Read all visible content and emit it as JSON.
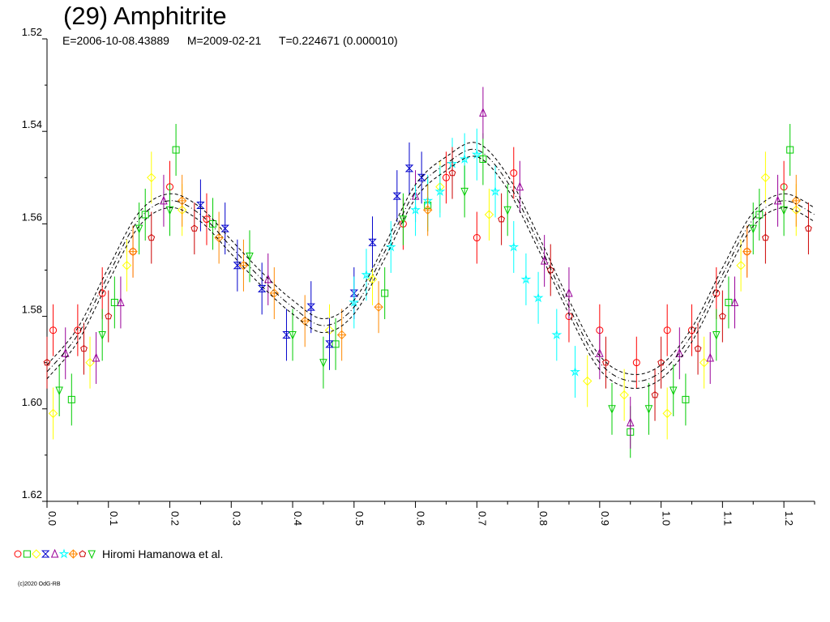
{
  "chart_data": {
    "type": "scatter",
    "title": "(29) Amphitrite",
    "subtitle": {
      "epoch": "E=2006-10-08.43889",
      "mid_date": "M=2009-02-21",
      "period": "T=0.224671 (0.000010)"
    },
    "xlabel": "",
    "ylabel": "",
    "xlim": [
      0.0,
      1.25
    ],
    "ylim": [
      1.52,
      1.62
    ],
    "y_inverted": true,
    "grid": false,
    "x_ticks": [
      "0.0",
      "0.1",
      "0.2",
      "0.3",
      "0.4",
      "0.5",
      "0.6",
      "0.7",
      "0.8",
      "0.9",
      "1.0",
      "1.1",
      "1.2"
    ],
    "y_ticks": [
      "1.52",
      "1.54",
      "1.56",
      "1.58",
      "1.60",
      "1.62"
    ],
    "fit_curve": {
      "x": [
        0.0,
        0.05,
        0.1,
        0.15,
        0.2,
        0.25,
        0.3,
        0.35,
        0.4,
        0.45,
        0.5,
        0.55,
        0.6,
        0.65,
        0.7,
        0.75,
        0.8,
        0.85,
        0.9,
        0.95,
        1.0,
        1.05,
        1.1,
        1.15,
        1.2,
        1.25
      ],
      "y": [
        1.592,
        1.584,
        1.571,
        1.559,
        1.555,
        1.558,
        1.565,
        1.572,
        1.578,
        1.582,
        1.578,
        1.566,
        1.553,
        1.547,
        1.544,
        1.551,
        1.564,
        1.578,
        1.59,
        1.594,
        1.592,
        1.584,
        1.571,
        1.559,
        1.555,
        1.558
      ],
      "band": 0.0015
    },
    "legend": {
      "text": "Hiromi Hamanowa et al.",
      "placement": "bottom-left",
      "markers": [
        {
          "shape": "circle",
          "color": "#ff0000"
        },
        {
          "shape": "square",
          "color": "#00cc00"
        },
        {
          "shape": "diamond",
          "color": "#ffff00"
        },
        {
          "shape": "hourglass",
          "color": "#0000cc"
        },
        {
          "shape": "triangle-up",
          "color": "#990099"
        },
        {
          "shape": "star",
          "color": "#00ffff"
        },
        {
          "shape": "plus-diamond",
          "color": "#ff8800"
        },
        {
          "shape": "pentagon",
          "color": "#cc0000"
        },
        {
          "shape": "triangle-down",
          "color": "#00cc00"
        }
      ]
    },
    "series": [
      {
        "marker": "circle",
        "color": "#ff0000",
        "points": [
          [
            0.01,
            1.583
          ],
          [
            0.05,
            1.583
          ],
          [
            0.09,
            1.575
          ],
          [
            0.14,
            1.566
          ],
          [
            0.2,
            1.552
          ],
          [
            0.26,
            1.559
          ],
          [
            0.58,
            1.56
          ],
          [
            0.65,
            1.55
          ],
          [
            0.7,
            1.563
          ],
          [
            0.76,
            1.549
          ],
          [
            0.85,
            1.58
          ],
          [
            0.9,
            1.583
          ],
          [
            0.96,
            1.59
          ],
          [
            1.01,
            1.583
          ],
          [
            1.05,
            1.583
          ],
          [
            1.09,
            1.575
          ],
          [
            1.14,
            1.566
          ],
          [
            1.2,
            1.552
          ]
        ]
      },
      {
        "marker": "square",
        "color": "#00cc00",
        "points": [
          [
            0.04,
            1.598
          ],
          [
            0.11,
            1.577
          ],
          [
            0.16,
            1.558
          ],
          [
            0.21,
            1.544
          ],
          [
            0.27,
            1.56
          ],
          [
            0.47,
            1.586
          ],
          [
            0.55,
            1.575
          ],
          [
            0.62,
            1.556
          ],
          [
            0.71,
            1.546
          ],
          [
            0.95,
            1.605
          ],
          [
            1.04,
            1.598
          ],
          [
            1.11,
            1.577
          ],
          [
            1.16,
            1.558
          ],
          [
            1.21,
            1.544
          ]
        ]
      },
      {
        "marker": "diamond",
        "color": "#ffff00",
        "points": [
          [
            0.01,
            1.601
          ],
          [
            0.07,
            1.59
          ],
          [
            0.13,
            1.569
          ],
          [
            0.17,
            1.55
          ],
          [
            0.22,
            1.557
          ],
          [
            0.46,
            1.583
          ],
          [
            0.53,
            1.572
          ],
          [
            0.64,
            1.552
          ],
          [
            0.72,
            1.558
          ],
          [
            0.88,
            1.594
          ],
          [
            0.94,
            1.597
          ],
          [
            1.01,
            1.601
          ],
          [
            1.07,
            1.59
          ],
          [
            1.13,
            1.569
          ],
          [
            1.17,
            1.55
          ],
          [
            1.22,
            1.557
          ]
        ]
      },
      {
        "marker": "hourglass",
        "color": "#0000cc",
        "points": [
          [
            0.25,
            1.556
          ],
          [
            0.29,
            1.561
          ],
          [
            0.31,
            1.569
          ],
          [
            0.35,
            1.574
          ],
          [
            0.39,
            1.584
          ],
          [
            0.43,
            1.578
          ],
          [
            0.46,
            1.586
          ],
          [
            0.5,
            1.575
          ],
          [
            0.53,
            1.564
          ],
          [
            0.57,
            1.554
          ],
          [
            0.59,
            1.548
          ],
          [
            0.61,
            1.55
          ]
        ]
      },
      {
        "marker": "triangle-up",
        "color": "#990099",
        "points": [
          [
            0.03,
            1.588
          ],
          [
            0.08,
            1.589
          ],
          [
            0.12,
            1.577
          ],
          [
            0.19,
            1.555
          ],
          [
            0.36,
            1.572
          ],
          [
            0.6,
            1.554
          ],
          [
            0.71,
            1.536
          ],
          [
            0.77,
            1.552
          ],
          [
            0.81,
            1.568
          ],
          [
            0.85,
            1.575
          ],
          [
            0.9,
            1.588
          ],
          [
            0.95,
            1.603
          ],
          [
            1.03,
            1.588
          ],
          [
            1.08,
            1.589
          ],
          [
            1.12,
            1.577
          ],
          [
            1.19,
            1.555
          ]
        ]
      },
      {
        "marker": "star",
        "color": "#00ffff",
        "points": [
          [
            0.5,
            1.577
          ],
          [
            0.52,
            1.571
          ],
          [
            0.56,
            1.565
          ],
          [
            0.6,
            1.557
          ],
          [
            0.62,
            1.555
          ],
          [
            0.64,
            1.553
          ],
          [
            0.66,
            1.547
          ],
          [
            0.68,
            1.546
          ],
          [
            0.7,
            1.545
          ],
          [
            0.73,
            1.553
          ],
          [
            0.76,
            1.565
          ],
          [
            0.78,
            1.572
          ],
          [
            0.8,
            1.576
          ],
          [
            0.83,
            1.584
          ],
          [
            0.86,
            1.592
          ]
        ]
      },
      {
        "marker": "plus-diamond",
        "color": "#ff8800",
        "points": [
          [
            0.14,
            1.566
          ],
          [
            0.22,
            1.555
          ],
          [
            0.28,
            1.563
          ],
          [
            0.32,
            1.569
          ],
          [
            0.37,
            1.575
          ],
          [
            0.42,
            1.581
          ],
          [
            0.48,
            1.584
          ],
          [
            0.54,
            1.578
          ],
          [
            0.62,
            1.557
          ],
          [
            1.14,
            1.566
          ],
          [
            1.22,
            1.555
          ]
        ]
      },
      {
        "marker": "pentagon",
        "color": "#cc0000",
        "points": [
          [
            0.0,
            1.59
          ],
          [
            0.06,
            1.587
          ],
          [
            0.1,
            1.58
          ],
          [
            0.17,
            1.563
          ],
          [
            0.24,
            1.561
          ],
          [
            0.66,
            1.549
          ],
          [
            0.74,
            1.559
          ],
          [
            0.82,
            1.57
          ],
          [
            0.91,
            1.59
          ],
          [
            0.99,
            1.597
          ],
          [
            1.0,
            1.59
          ],
          [
            1.06,
            1.587
          ],
          [
            1.1,
            1.58
          ],
          [
            1.17,
            1.563
          ],
          [
            1.24,
            1.561
          ]
        ]
      },
      {
        "marker": "triangle-down",
        "color": "#00cc00",
        "points": [
          [
            0.02,
            1.596
          ],
          [
            0.09,
            1.584
          ],
          [
            0.15,
            1.561
          ],
          [
            0.2,
            1.557
          ],
          [
            0.33,
            1.567
          ],
          [
            0.4,
            1.584
          ],
          [
            0.45,
            1.59
          ],
          [
            0.58,
            1.559
          ],
          [
            0.68,
            1.553
          ],
          [
            0.75,
            1.557
          ],
          [
            0.92,
            1.6
          ],
          [
            0.98,
            1.6
          ],
          [
            1.02,
            1.596
          ],
          [
            1.09,
            1.584
          ],
          [
            1.15,
            1.561
          ],
          [
            1.2,
            1.557
          ]
        ]
      }
    ]
  },
  "copyright": "(c)2020 OdG-RB"
}
